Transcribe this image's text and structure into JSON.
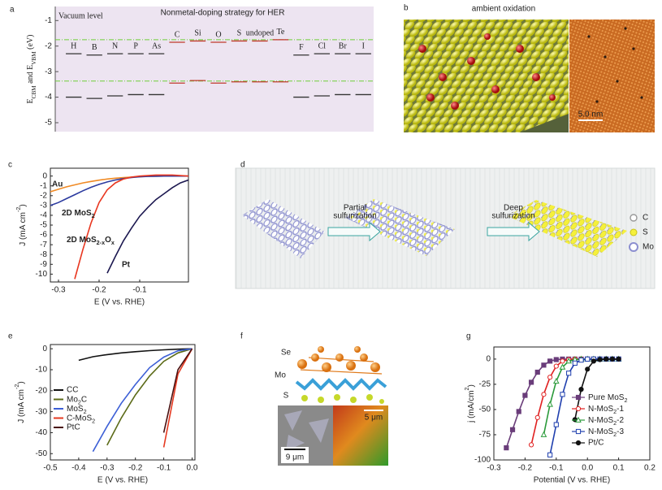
{
  "panel_labels": [
    "a",
    "b",
    "c",
    "d",
    "e",
    "f",
    "g"
  ],
  "chart_data": [
    {
      "type": "level-diagram",
      "title": "Nonmetal-doping strategy for HER",
      "annotation": "Vacuum level",
      "ylabel": [
        {
          "text": "E"
        },
        {
          "text": "CBM",
          "sub": true
        },
        {
          "text": " and "
        },
        {
          "text": "E"
        },
        {
          "text": "VBM",
          "sub": true
        },
        {
          "text": " (eV)"
        }
      ],
      "categories": [
        "H",
        "B",
        "N",
        "P",
        "As",
        "C",
        "Si",
        "O",
        "S",
        "undoped",
        "Te",
        "F",
        "Cl",
        "Br",
        "I"
      ],
      "upper": [
        -2.3,
        -2.35,
        -2.3,
        -2.3,
        -2.3,
        -1.85,
        -1.8,
        -1.85,
        -1.8,
        -1.8,
        -1.75,
        -2.35,
        -2.3,
        -2.3,
        -2.3
      ],
      "lower": [
        -4.0,
        -4.05,
        -3.95,
        -3.9,
        -3.9,
        -3.45,
        -3.35,
        -3.45,
        -3.4,
        -3.4,
        -3.4,
        -4.0,
        -3.95,
        -3.9,
        -3.9
      ],
      "colors": [
        "#333333",
        "#333333",
        "#333333",
        "#333333",
        "#333333",
        "#c0392b",
        "#c0392b",
        "#c0392b",
        "#c0392b",
        "#c0392b",
        "#c0392b",
        "#333333",
        "#333333",
        "#333333",
        "#333333"
      ],
      "reference_levels": [
        -1.75,
        -3.37
      ],
      "reference_color": "#6fcf3a",
      "background": "#ede4f1",
      "ylim": [
        -5.35,
        -0.45
      ],
      "yticks": [
        -1,
        -2,
        -3,
        -4,
        -5
      ]
    },
    {
      "type": "line",
      "legend": "inline",
      "xlabel": "E (V vs. RHE)",
      "ylabel": [
        {
          "text": "J (mA cm"
        },
        {
          "text": "-2",
          "sup": true
        },
        {
          "text": ")"
        }
      ],
      "x": [
        -0.32,
        -0.3,
        -0.28,
        -0.26,
        -0.24,
        -0.22,
        -0.2,
        -0.18,
        -0.16,
        -0.14,
        -0.12,
        -0.1,
        -0.08,
        -0.06,
        -0.04,
        -0.02,
        0,
        0.02
      ],
      "series": [
        {
          "name": "Au",
          "color": "#f08a24",
          "values": [
            -1.6,
            -1.35,
            -1.1,
            -0.9,
            -0.7,
            -0.55,
            -0.42,
            -0.3,
            -0.22,
            -0.15,
            -0.1,
            -0.06,
            -0.03,
            -0.01,
            0,
            0,
            0,
            0
          ]
        },
        {
          "name": [
            {
              "text": "2D MoS"
            },
            {
              "text": "2",
              "sub": true
            }
          ],
          "color": "#2b3a9f",
          "values": [
            -3.0,
            -2.7,
            -2.3,
            -1.9,
            -1.5,
            -1.15,
            -0.85,
            -0.6,
            -0.4,
            -0.25,
            -0.15,
            -0.08,
            -0.04,
            -0.02,
            0,
            0,
            0,
            0
          ]
        },
        {
          "name": [
            {
              "text": "2D MoS"
            },
            {
              "text": "2-x",
              "sub": true
            },
            {
              "text": "O"
            },
            {
              "text": "x",
              "sub": true
            }
          ],
          "color": "#e8361f",
          "values": [
            null,
            null,
            null,
            -10.5,
            -7.5,
            -4.8,
            -2.7,
            -1.4,
            -0.7,
            -0.3,
            -0.1,
            0,
            0.05,
            0.1,
            0.1,
            0.1,
            0.05,
            0
          ]
        },
        {
          "name": "Pt",
          "color": "#1c1850",
          "values": [
            null,
            null,
            null,
            null,
            null,
            null,
            null,
            -9.9,
            -8.2,
            -6.6,
            -5.3,
            -4.1,
            -3.2,
            -2.4,
            -1.8,
            -1.2,
            -0.7,
            -0.4
          ]
        }
      ],
      "xlim": [
        -0.32,
        0.02
      ],
      "xticks": [
        -0.3,
        -0.2,
        -0.1
      ],
      "ylim": [
        -10.8,
        0.8
      ],
      "yticks": [
        0,
        -1,
        -2,
        -3,
        -4,
        -5,
        -6,
        -7,
        -8,
        -9,
        -10
      ]
    },
    {
      "type": "line",
      "legend": "left",
      "xlabel": "E (V vs. RHE)",
      "ylabel": [
        {
          "text": "J (mA cm"
        },
        {
          "text": "-2",
          "sup": true
        },
        {
          "text": ")"
        }
      ],
      "x": [
        -0.45,
        -0.4,
        -0.35,
        -0.3,
        -0.25,
        -0.2,
        -0.15,
        -0.1,
        -0.05,
        0
      ],
      "series": [
        {
          "name": "CC",
          "color": "#111111",
          "values": [
            null,
            -5.5,
            -3.8,
            -2.8,
            -2.0,
            -1.4,
            -0.9,
            -0.5,
            -0.2,
            0
          ]
        },
        {
          "name": [
            {
              "text": "Mo"
            },
            {
              "text": "2",
              "sub": true
            },
            {
              "text": "C"
            }
          ],
          "color": "#5c6b18",
          "values": [
            null,
            null,
            null,
            -46,
            -33,
            -22,
            -13,
            -6,
            -2,
            0
          ]
        },
        {
          "name": [
            {
              "text": "MoS"
            },
            {
              "text": "2",
              "sub": true
            }
          ],
          "color": "#3c5fd6",
          "values": [
            null,
            null,
            -49,
            -37,
            -26,
            -17,
            -9,
            -4,
            -1,
            0
          ]
        },
        {
          "name": [
            {
              "text": "C-MoS"
            },
            {
              "text": "2",
              "sub": true
            }
          ],
          "color": "#e53920",
          "values": [
            null,
            null,
            null,
            null,
            null,
            null,
            null,
            -47,
            -12,
            0
          ]
        },
        {
          "name": "PtC",
          "color": "#4a1010",
          "values": [
            null,
            null,
            null,
            null,
            null,
            null,
            null,
            -40,
            -10,
            0
          ]
        }
      ],
      "xlim": [
        -0.5,
        0.01
      ],
      "xticks": [
        -0.5,
        -0.4,
        -0.3,
        -0.2,
        -0.1,
        {
          "value": 0,
          "label": "0.0"
        }
      ],
      "ylim": [
        -53,
        2
      ],
      "yticks": [
        0,
        -10,
        -20,
        -30,
        -40,
        -50
      ]
    },
    {
      "type": "line",
      "legend": "right",
      "xlabel": "Potential (V vs. RHE)",
      "ylabel": [
        {
          "text": "j (mA/cm"
        },
        {
          "text": "2",
          "sup": true
        },
        {
          "text": ")"
        }
      ],
      "x": [
        -0.28,
        -0.26,
        -0.24,
        -0.22,
        -0.2,
        -0.18,
        -0.16,
        -0.14,
        -0.12,
        -0.1,
        -0.08,
        -0.06,
        -0.04,
        -0.02,
        0,
        0.02,
        0.04,
        0.06,
        0.08,
        0.1
      ],
      "series": [
        {
          "name": [
            {
              "text": "Pure MoS"
            },
            {
              "text": "2",
              "sub": true
            }
          ],
          "color": "#6a3d7a",
          "marker": "square",
          "filled": true,
          "values": [
            null,
            -88,
            -70,
            -52,
            -36,
            -23,
            -13,
            -6,
            -2,
            -0.5,
            0,
            0,
            0,
            0,
            0,
            0,
            0,
            0,
            0,
            0
          ]
        },
        {
          "name": [
            {
              "text": "N-MoS"
            },
            {
              "text": "2",
              "sub": true
            },
            {
              "text": "-1"
            }
          ],
          "color": "#e02020",
          "marker": "circle",
          "filled": false,
          "values": [
            null,
            null,
            null,
            null,
            null,
            -85,
            -58,
            -35,
            -18,
            -7,
            -2,
            -0.5,
            0,
            0,
            0,
            0,
            0,
            0,
            0,
            0
          ]
        },
        {
          "name": [
            {
              "text": "N-MoS"
            },
            {
              "text": "2",
              "sub": true
            },
            {
              "text": "-2"
            }
          ],
          "color": "#2a9a3a",
          "marker": "triangle",
          "filled": false,
          "values": [
            null,
            null,
            null,
            null,
            null,
            null,
            null,
            -75,
            -45,
            -22,
            -8,
            -2,
            -0.5,
            0,
            0,
            0,
            0,
            0,
            0,
            0
          ]
        },
        {
          "name": [
            {
              "text": "N-MoS"
            },
            {
              "text": "2",
              "sub": true
            },
            {
              "text": "-3"
            }
          ],
          "color": "#1f3fae",
          "marker": "square",
          "filled": false,
          "values": [
            null,
            null,
            null,
            null,
            null,
            null,
            null,
            null,
            -95,
            -65,
            -35,
            -14,
            -4,
            -1,
            0,
            0,
            0,
            0,
            0,
            0
          ]
        },
        {
          "name": "Pt/C",
          "color": "#111111",
          "marker": "circle",
          "filled": true,
          "values": [
            null,
            null,
            null,
            null,
            null,
            null,
            null,
            null,
            null,
            null,
            null,
            null,
            -60,
            -30,
            -10,
            -2,
            -0.5,
            0,
            0,
            0
          ]
        }
      ],
      "xlim": [
        -0.3,
        0.2
      ],
      "xticks": [
        -0.3,
        -0.2,
        -0.1,
        {
          "value": 0,
          "label": "0.0"
        },
        0.1,
        0.2
      ],
      "ylim": [
        -100,
        12
      ],
      "yticks": [
        0,
        -25,
        -50,
        -75,
        -100
      ]
    }
  ],
  "panel_b": {
    "title": "ambient oxidation",
    "scale_bar": "5.0 nm"
  },
  "panel_d": {
    "arrow_labels": [
      [
        "Partial",
        "sulfurization"
      ],
      [
        "Deep",
        "sulfurization"
      ]
    ],
    "legend": [
      "C",
      "S",
      "Mo"
    ]
  },
  "panel_f": {
    "atoms": [
      "Se",
      "Mo",
      "S"
    ],
    "scale_bars": [
      "9 μm",
      "5 μm"
    ]
  }
}
